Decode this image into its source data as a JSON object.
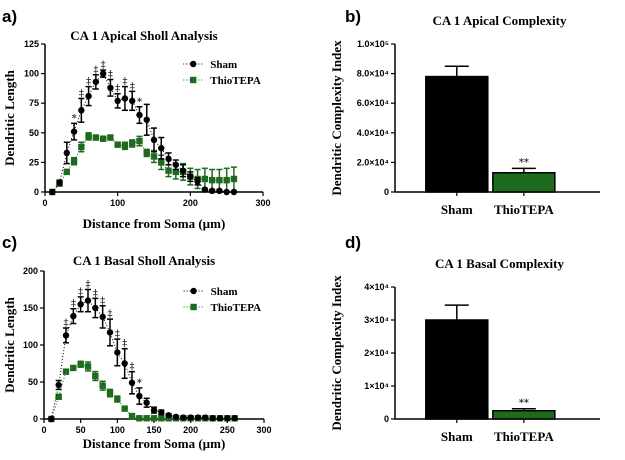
{
  "colors": {
    "sham": "#000000",
    "thio": "#1e6b1e"
  },
  "chart_data": [
    {
      "panel": "a)",
      "type": "line",
      "title": "CA 1 Apical Sholl Analysis",
      "xlabel": "Distance from Soma (µm)",
      "ylabel": "Dendritic Length",
      "xlim": [
        0,
        300
      ],
      "ylim": [
        0,
        125
      ],
      "xticks": [
        0,
        100,
        200,
        300
      ],
      "yticks": [
        0,
        25,
        50,
        75,
        100,
        125
      ],
      "legend": "top-right",
      "x": [
        10,
        20,
        30,
        40,
        50,
        60,
        70,
        80,
        90,
        100,
        110,
        120,
        130,
        140,
        150,
        160,
        170,
        180,
        190,
        200,
        210,
        220,
        230,
        240,
        250,
        260
      ],
      "series": [
        {
          "name": "Sham",
          "values": [
            0,
            8,
            33,
            51,
            69,
            81,
            93,
            100,
            88,
            77,
            79,
            77,
            65,
            61,
            44,
            37,
            28,
            23,
            18,
            13,
            9,
            2,
            1,
            1,
            0,
            0
          ],
          "err": [
            0,
            2,
            9,
            7,
            10,
            8,
            6,
            3,
            7,
            6,
            10,
            8,
            7,
            13,
            10,
            9,
            5,
            4,
            5,
            4,
            3,
            1,
            1,
            1,
            0,
            0
          ]
        },
        {
          "name": "ThioTEPA",
          "values": [
            0,
            7,
            17,
            26,
            38,
            47,
            46,
            45,
            46,
            40,
            39,
            41,
            43,
            33,
            30,
            25,
            18,
            17,
            17,
            13,
            11,
            11,
            10,
            10,
            10,
            11
          ],
          "err": [
            0,
            1,
            2,
            3,
            4,
            3,
            2,
            2,
            2,
            2,
            3,
            3,
            4,
            3,
            5,
            6,
            5,
            6,
            7,
            7,
            8,
            9,
            9,
            9,
            10,
            10
          ]
        }
      ],
      "annotations": [
        {
          "x": 40,
          "text": "*"
        },
        {
          "x": 50,
          "text": "‡"
        },
        {
          "x": 60,
          "text": "‡"
        },
        {
          "x": 70,
          "text": "‡"
        },
        {
          "x": 80,
          "text": "‡"
        },
        {
          "x": 90,
          "text": "‡"
        },
        {
          "x": 100,
          "text": "‡"
        },
        {
          "x": 110,
          "text": "‡"
        },
        {
          "x": 120,
          "text": "‡"
        },
        {
          "x": 130,
          "text": "*"
        }
      ]
    },
    {
      "panel": "b)",
      "type": "bar",
      "title": "CA 1 Apical Complexity",
      "ylabel": "Dendritic Complexity Index",
      "ylim": [
        0,
        100000
      ],
      "yticks": [
        0,
        20000,
        40000,
        60000,
        80000,
        100000
      ],
      "ytick_labels": [
        "0",
        "2.0×10⁴",
        "4.0×10⁴",
        "6.0×10⁴",
        "8.0×10⁴",
        "1.0×10⁵"
      ],
      "categories": [
        "Sham",
        "ThioTEPA"
      ],
      "values": [
        78000,
        13000
      ],
      "err": [
        7000,
        3000
      ],
      "annotations": [
        {
          "category": "ThioTEPA",
          "text": "**"
        }
      ]
    },
    {
      "panel": "c)",
      "type": "line",
      "title": "CA 1 Basal Sholl Analysis",
      "xlabel": "Distance from Soma (µm)",
      "ylabel": "Dendritic Length",
      "xlim": [
        0,
        300
      ],
      "ylim": [
        0,
        200
      ],
      "xticks": [
        0,
        50,
        100,
        150,
        200,
        250,
        300
      ],
      "yticks": [
        0,
        50,
        100,
        150,
        200
      ],
      "legend": "top-right",
      "x": [
        10,
        20,
        30,
        40,
        50,
        60,
        70,
        80,
        90,
        100,
        110,
        120,
        130,
        140,
        150,
        160,
        170,
        180,
        190,
        200,
        210,
        220,
        230,
        240,
        250,
        260
      ],
      "series": [
        {
          "name": "Sham",
          "values": [
            0,
            46,
            113,
            139,
            155,
            160,
            150,
            138,
            117,
            90,
            75,
            49,
            31,
            22,
            12,
            9,
            5,
            3,
            2,
            2,
            2,
            2,
            1,
            1,
            1,
            1
          ],
          "err": [
            0,
            6,
            10,
            10,
            10,
            15,
            13,
            15,
            18,
            18,
            20,
            15,
            11,
            6,
            4,
            3,
            2,
            1,
            1,
            1,
            1,
            1,
            0,
            0,
            0,
            0
          ]
        },
        {
          "name": "ThioTEPA",
          "values": [
            0,
            30,
            64,
            69,
            74,
            71,
            58,
            45,
            35,
            27,
            14,
            4,
            1,
            1,
            1,
            1,
            1,
            1,
            1,
            1,
            1,
            1,
            1,
            1,
            1,
            1
          ],
          "err": [
            0,
            3,
            3,
            3,
            4,
            6,
            6,
            6,
            5,
            4,
            2,
            1,
            0,
            0,
            0,
            0,
            0,
            0,
            0,
            0,
            0,
            0,
            0,
            0,
            0,
            0
          ]
        }
      ],
      "annotations": [
        {
          "x": 30,
          "text": "‡"
        },
        {
          "x": 40,
          "text": "‡"
        },
        {
          "x": 50,
          "text": "‡"
        },
        {
          "x": 60,
          "text": "‡"
        },
        {
          "x": 70,
          "text": "‡"
        },
        {
          "x": 80,
          "text": "‡"
        },
        {
          "x": 90,
          "text": "‡"
        },
        {
          "x": 100,
          "text": "‡"
        },
        {
          "x": 110,
          "text": "‡"
        },
        {
          "x": 120,
          "text": "‡"
        },
        {
          "x": 130,
          "text": "*"
        }
      ]
    },
    {
      "panel": "d)",
      "type": "bar",
      "title": "CA 1 Basal Complexity",
      "ylabel": "Dendritic Complexity Index",
      "ylim": [
        0,
        40000
      ],
      "yticks": [
        0,
        10000,
        20000,
        30000,
        40000
      ],
      "ytick_labels": [
        "0",
        "1×10⁴",
        "2×10⁴",
        "3×10⁴",
        "4×10⁴"
      ],
      "categories": [
        "Sham",
        "ThioTEPA"
      ],
      "values": [
        30000,
        2500
      ],
      "err": [
        4500,
        600
      ],
      "annotations": [
        {
          "category": "ThioTEPA",
          "text": "**"
        }
      ]
    }
  ]
}
